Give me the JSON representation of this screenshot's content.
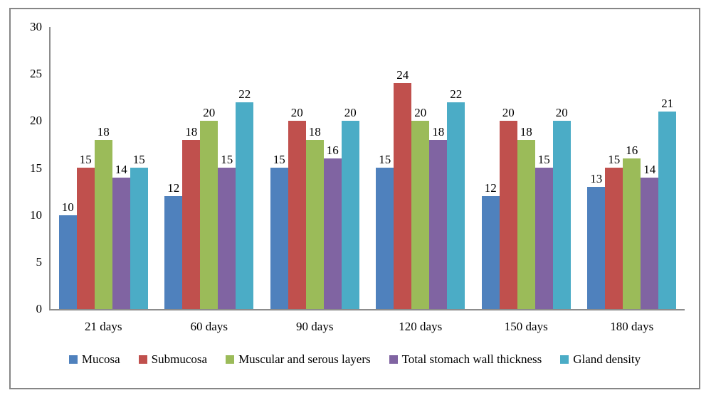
{
  "chart_data": {
    "type": "bar",
    "title": "",
    "xlabel": "",
    "ylabel": "",
    "categories": [
      "21 days",
      "60 days",
      "90 days",
      "120 days",
      "150 days",
      "180 days"
    ],
    "series": [
      {
        "name": "Mucosa",
        "color": "#4F81BD",
        "values": [
          10,
          12,
          15,
          15,
          12,
          13
        ]
      },
      {
        "name": "Submucosa",
        "color": "#C0504D",
        "values": [
          15,
          18,
          20,
          24,
          20,
          15
        ]
      },
      {
        "name": "Muscular and serous layers",
        "color": "#9BBB59",
        "values": [
          18,
          20,
          18,
          20,
          18,
          16
        ]
      },
      {
        "name": "Total stomach wall thickness",
        "color": "#8064A2",
        "values": [
          14,
          15,
          16,
          18,
          15,
          14
        ]
      },
      {
        "name": "Gland density",
        "color": "#4BACC6",
        "values": [
          15,
          22,
          20,
          22,
          20,
          21
        ]
      }
    ],
    "ylim": [
      0,
      30
    ],
    "yticks": [
      30,
      25,
      20,
      15,
      10,
      5,
      0
    ],
    "grid": false,
    "data_labels": true,
    "legend_position": "bottom"
  },
  "colors": {
    "background": "#FFFFFF",
    "frame_border": "#868686",
    "axis_line": "#8C8C8C",
    "text": "#000000"
  }
}
